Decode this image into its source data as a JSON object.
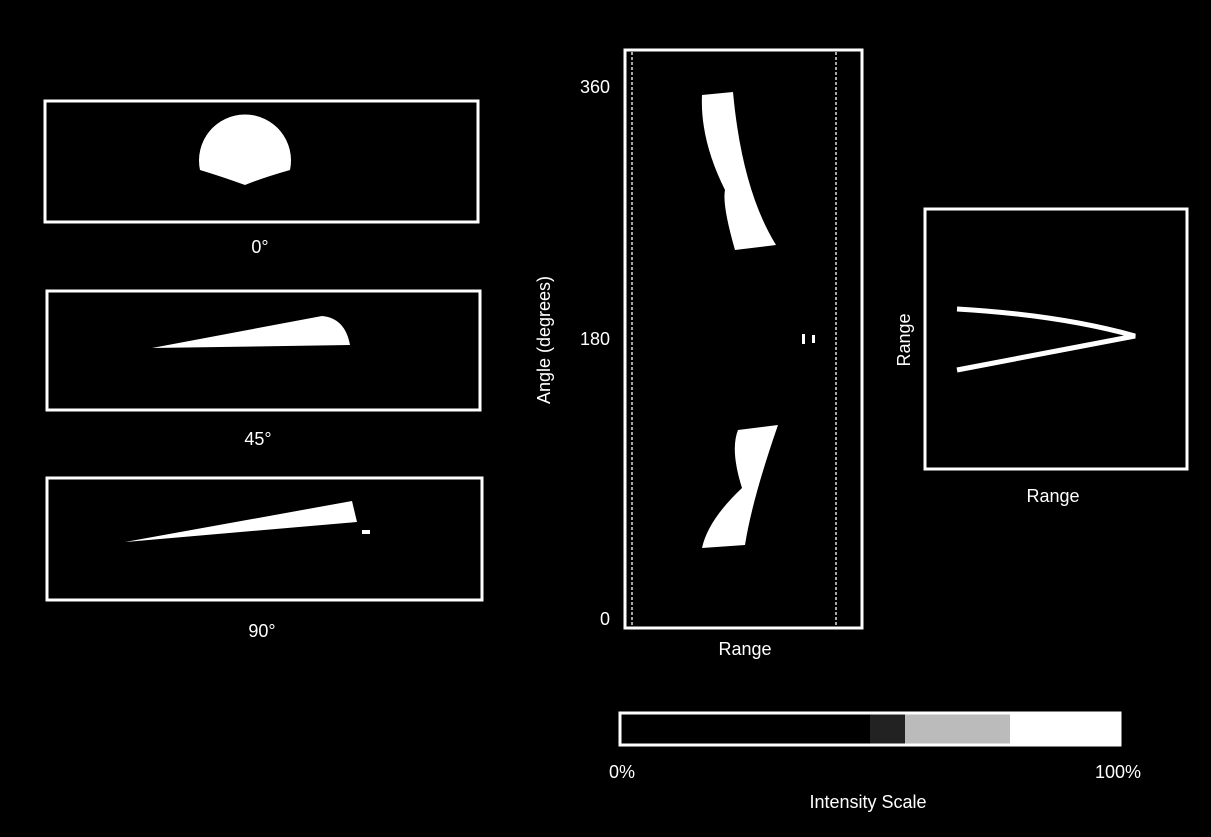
{
  "views": [
    {
      "label": "0°"
    },
    {
      "label": "45°"
    },
    {
      "label": "90°"
    }
  ],
  "sinogram": {
    "y_label": "Angle (degrees)",
    "x_label": "Range",
    "yticks": [
      "360",
      "180",
      "0"
    ]
  },
  "image": {
    "x_label": "Range",
    "y_label": "Range"
  },
  "scale": {
    "min": "0%",
    "max": "100%",
    "title": "Intensity Scale"
  }
}
